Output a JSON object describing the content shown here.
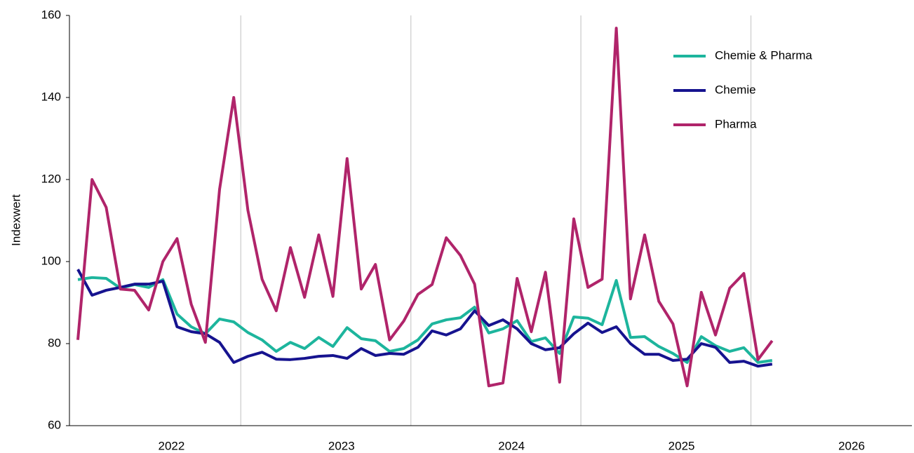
{
  "chart_data": {
    "type": "line",
    "y_label": "Indexwert",
    "categories": [
      null,
      null,
      null,
      null,
      null,
      null,
      null,
      "2022",
      null,
      null,
      null,
      null,
      null,
      null,
      null,
      null,
      null,
      null,
      null,
      "2023",
      null,
      null,
      null,
      null,
      null,
      null,
      null,
      null,
      null,
      null,
      null,
      "2024",
      null,
      null,
      null,
      null,
      null,
      null,
      null,
      null,
      null,
      null,
      null,
      "2025",
      null,
      null,
      null,
      null,
      null,
      null,
      null,
      null,
      null,
      null,
      null,
      "2026",
      null,
      null,
      null,
      null
    ],
    "series": [
      {
        "name": "Chemie & Pharma",
        "color": "#1db59d",
        "values": [
          95.6,
          96.1,
          95.9,
          93.5,
          94.4,
          93.7,
          95.6,
          87.2,
          84.1,
          82.4,
          86,
          85.3,
          82.7,
          80.9,
          78.1,
          80.3,
          78.8,
          81.5,
          79.3,
          83.9,
          81.2,
          80.7,
          78.1,
          78.8,
          80.9,
          84.8,
          85.8,
          86.3,
          88.9,
          82.6,
          83.6,
          85.6,
          80.5,
          81.4,
          77.6,
          86.5,
          86.2,
          84.6,
          95.4,
          81.5,
          81.7,
          79.3,
          77.6,
          75.4,
          81.7,
          79.5,
          78.1,
          79,
          75.4,
          75.9,
          null,
          null,
          null,
          null,
          null,
          null,
          null,
          null,
          null,
          null
        ]
      },
      {
        "name": "Chemie",
        "color": "#16138f",
        "values": [
          98.1,
          91.8,
          93,
          93.7,
          94.5,
          94.5,
          95.2,
          84.1,
          82.9,
          82.4,
          80.3,
          75.4,
          76.9,
          77.9,
          76.2,
          76.1,
          76.4,
          76.9,
          77.1,
          76.4,
          78.8,
          77.1,
          77.6,
          77.4,
          79.1,
          83.1,
          82.1,
          83.6,
          88,
          84.4,
          85.8,
          83.6,
          80,
          78.5,
          79,
          82.4,
          85,
          82.7,
          84.1,
          80,
          77.4,
          77.4,
          75.9,
          76.2,
          80,
          79.1,
          75.4,
          75.7,
          74.5,
          75,
          null,
          null,
          null,
          null,
          null,
          null,
          null,
          null,
          null,
          null
        ]
      },
      {
        "name": "Pharma",
        "color": "#b0246a",
        "values": [
          80.9,
          120,
          113.2,
          93.3,
          93,
          88.2,
          100,
          105.6,
          89.6,
          80.3,
          117.6,
          140,
          112.5,
          95.7,
          88,
          103.4,
          91.3,
          106.5,
          91.5,
          125.1,
          93.3,
          99.3,
          80.9,
          85.5,
          92,
          94.4,
          105.8,
          101.5,
          94.5,
          69.7,
          70.4,
          95.9,
          82.9,
          97.4,
          70.6,
          110.4,
          93.7,
          95.7,
          156.9,
          90.9,
          106.5,
          90.3,
          84.8,
          69.7,
          92.5,
          82.1,
          93.5,
          97.1,
          76.1,
          80.7,
          null,
          null,
          null,
          null,
          null,
          null,
          null,
          null,
          null,
          null
        ]
      }
    ],
    "ylim": [
      60,
      160
    ],
    "yticks": [
      60,
      80,
      100,
      120,
      140,
      160
    ],
    "x_grid": true,
    "legend": "upper right"
  }
}
